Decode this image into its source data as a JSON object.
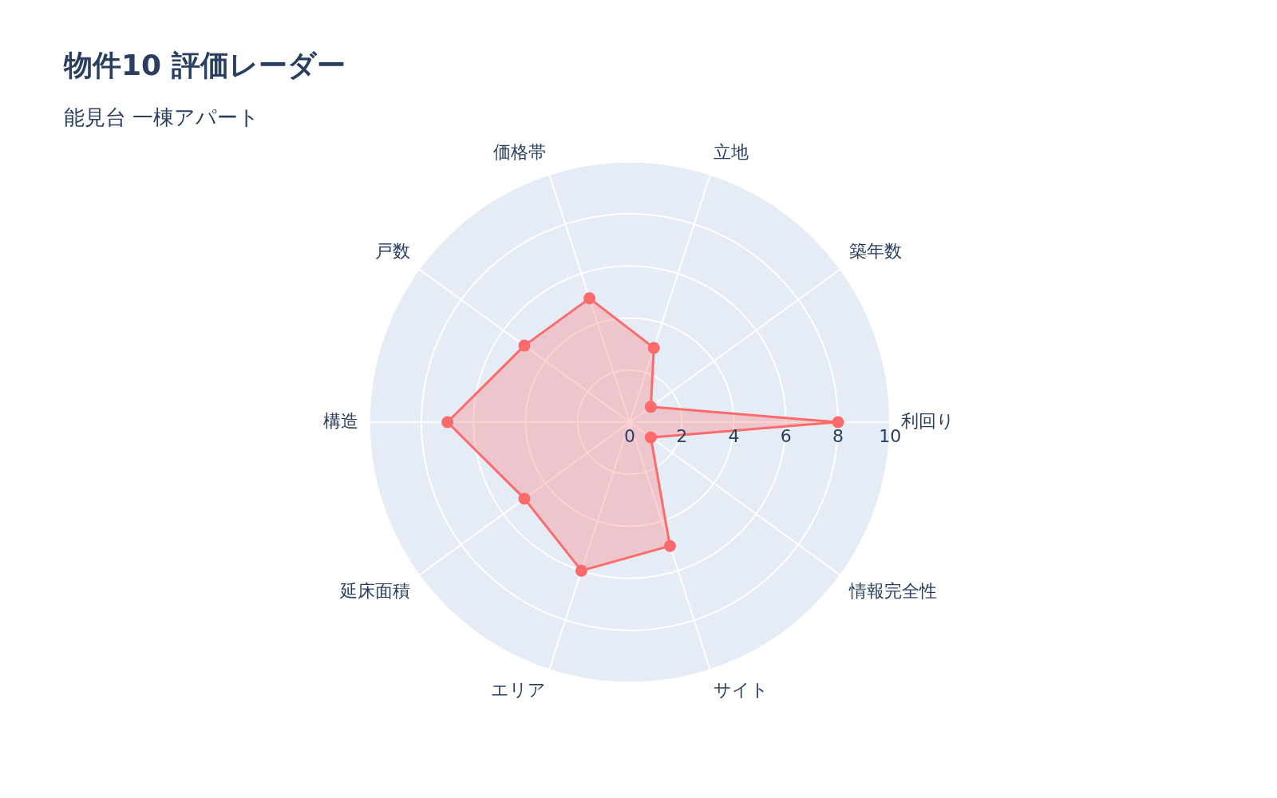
{
  "chart_data": {
    "type": "radar",
    "title": "物件10 評価レーダー",
    "subtitle": "能見台 一棟アパート",
    "categories": [
      "立地",
      "築年数",
      "利回り",
      "情報完全性",
      "サイト",
      "エリア",
      "延床面積",
      "構造",
      "戸数",
      "価格帯"
    ],
    "series": [
      {
        "color": "#ff6b6b",
        "values": [
          3,
          1,
          8,
          1,
          5,
          6,
          5,
          7,
          5,
          5
        ]
      }
    ],
    "ylim": [
      0,
      10
    ],
    "yticks": [
      0,
      2,
      4,
      6,
      8,
      10
    ],
    "grid": true,
    "marker": "circle"
  }
}
